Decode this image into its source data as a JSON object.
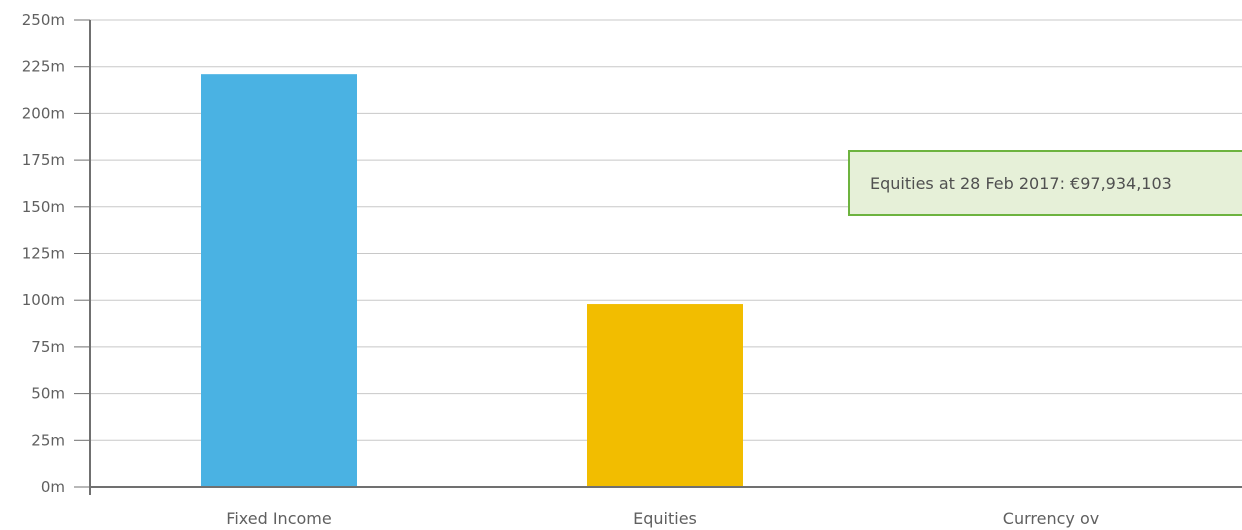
{
  "chart_data": {
    "type": "bar",
    "categories": [
      "Fixed Income",
      "Equities",
      "Currency ov"
    ],
    "series": [
      {
        "values": [
          221000000,
          97934103,
          0
        ],
        "colors": [
          "#4ab2e3",
          "#f2bd00",
          "#ffffff"
        ]
      }
    ],
    "ylim": [
      0,
      250000000
    ],
    "yticks": [
      0,
      25000000,
      50000000,
      75000000,
      100000000,
      125000000,
      150000000,
      175000000,
      200000000,
      225000000,
      250000000
    ],
    "ytick_labels": [
      "0m",
      "25m",
      "50m",
      "75m",
      "100m",
      "125m",
      "150m",
      "175m",
      "200m",
      "225m",
      "250m"
    ],
    "grid": true,
    "title": "",
    "xlabel": "",
    "ylabel": ""
  },
  "tooltip": {
    "text": "Equities at 28 Feb 2017: €97,934,103",
    "border_color": "#6db33f",
    "background_color": "#e6f0d8"
  },
  "colors": {
    "gridline": "#c8c8c8",
    "axis": "#707070",
    "label": "#606060"
  }
}
